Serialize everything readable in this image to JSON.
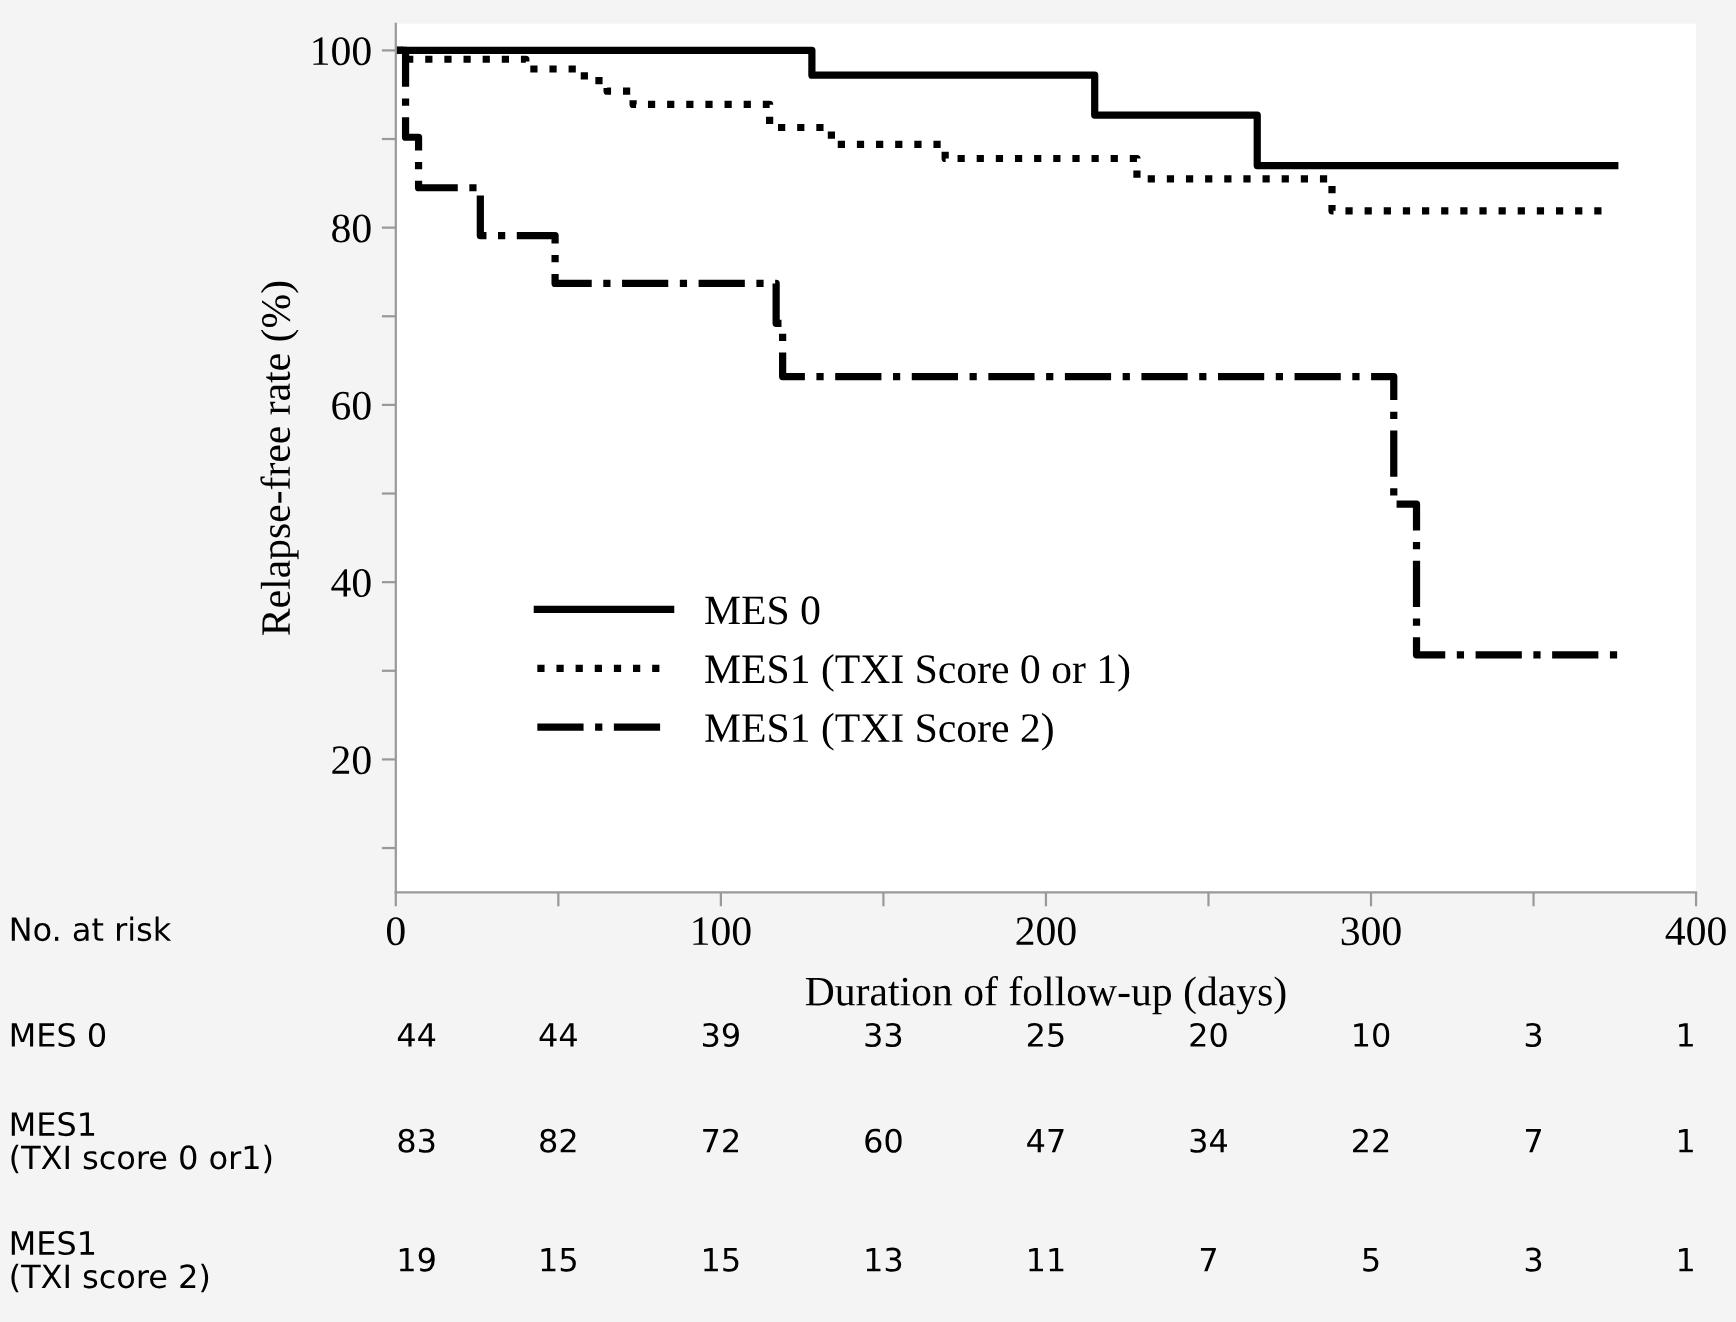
{
  "chart_data": {
    "type": "step",
    "xlabel": "Duration of follow-up (days)",
    "ylabel": "Relapse-free rate (%)",
    "xlim": [
      0,
      400
    ],
    "ylim": [
      5,
      103
    ],
    "xticks": [
      0,
      {
        "value": 50,
        "label": null
      },
      100,
      {
        "value": 150,
        "label": null
      },
      200,
      {
        "value": 250,
        "label": null
      },
      300,
      {
        "value": 350,
        "label": null
      },
      400
    ],
    "yticks": [
      {
        "value": 10,
        "label": null
      },
      20,
      {
        "value": 30,
        "label": null
      },
      40,
      {
        "value": 50,
        "label": null
      },
      60,
      {
        "value": 70,
        "label": null
      },
      80,
      {
        "value": 90,
        "label": null
      },
      100
    ],
    "grid": false,
    "legend": "bottom left",
    "marker": "none",
    "series": [
      {
        "name": "MES 0",
        "color": "#000000",
        "line_style": "solid",
        "x": [
          0,
          128,
          215,
          265,
          375
        ],
        "values": [
          100,
          97.2,
          92.7,
          87.0,
          87.0
        ]
      },
      {
        "name": "MES1 (TXI Score 0 or 1)",
        "color": "#000000",
        "line_style": "dotted",
        "x": [
          0,
          4,
          40,
          58,
          65,
          73,
          115,
          134,
          169,
          228,
          288,
          373
        ],
        "values": [
          100,
          99.0,
          97.9,
          96.6,
          95.4,
          93.9,
          91.3,
          89.4,
          87.8,
          85.5,
          81.9,
          81.9
        ]
      },
      {
        "name": "MES1 (TXI Score 2)",
        "color": "#000000",
        "line_style": "dashdot",
        "x": [
          0,
          3,
          7,
          26,
          49,
          117,
          119,
          307,
          314,
          377
        ],
        "values": [
          100,
          90.2,
          84.5,
          79.1,
          73.7,
          69.2,
          63.2,
          48.8,
          31.8,
          31.8
        ]
      }
    ],
    "annotations": [
      "No. at risk",
      "MES 0",
      "44",
      "44",
      "39",
      "33",
      "25",
      "20",
      "10",
      "3",
      "1",
      "MES1\n(TXI score 0 or1)",
      "83",
      "82",
      "72",
      "60",
      "47",
      "34",
      "22",
      "7",
      "1",
      "MES1\n(TXI score 2)",
      "19",
      "15",
      "15",
      "13",
      "11",
      "7",
      "5",
      "3",
      "1"
    ]
  }
}
